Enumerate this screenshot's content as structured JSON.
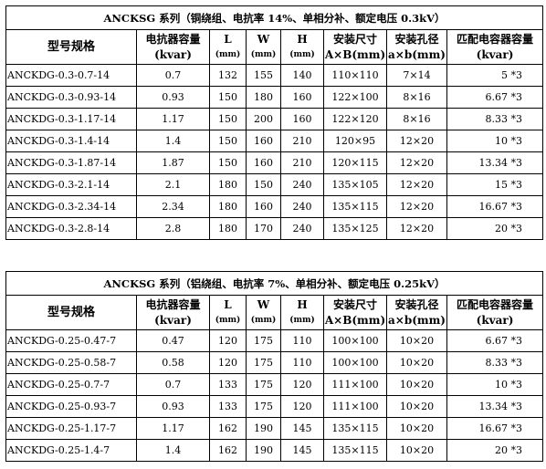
{
  "tables": [
    {
      "title": "ANCKSG 系列（铜绕组、电抗率 14%、单相分补、额定电压 0.3kV）",
      "headers": {
        "model": "型号规格",
        "reactor_cap_l1": "电抗器容量",
        "reactor_cap_l2": "(kvar)",
        "L_l1": "L",
        "L_l2": "(mm)",
        "W_l1": "W",
        "W_l2": "(mm)",
        "H_l1": "H",
        "H_l2": "(mm)",
        "install_l1": "安装尺寸",
        "install_l2": "A×B(mm)",
        "hole_l1": "安装孔径",
        "hole_l2": "a×b(mm)",
        "cap_l1": "匹配电容器容量",
        "cap_l2": "(kvar)"
      },
      "rows": [
        {
          "model": "ANCKDG-0.3-0.7-14",
          "reactor": "0.7",
          "L": "132",
          "W": "155",
          "H": "140",
          "install": "110×110",
          "hole": "7×14",
          "cap": "5 *3"
        },
        {
          "model": "ANCKDG-0.3-0.93-14",
          "reactor": "0.93",
          "L": "150",
          "W": "180",
          "H": "160",
          "install": "122×100",
          "hole": "8×16",
          "cap": "6.67 *3"
        },
        {
          "model": "ANCKDG-0.3-1.17-14",
          "reactor": "1.17",
          "L": "150",
          "W": "200",
          "H": "160",
          "install": "122×120",
          "hole": "8×16",
          "cap": "8.33 *3"
        },
        {
          "model": "ANCKDG-0.3-1.4-14",
          "reactor": "1.4",
          "L": "150",
          "W": "160",
          "H": "210",
          "install": "120×95",
          "hole": "12×20",
          "cap": "10 *3"
        },
        {
          "model": "ANCKDG-0.3-1.87-14",
          "reactor": "1.87",
          "L": "150",
          "W": "160",
          "H": "210",
          "install": "120×115",
          "hole": "12×20",
          "cap": "13.34 *3"
        },
        {
          "model": "ANCKDG-0.3-2.1-14",
          "reactor": "2.1",
          "L": "180",
          "W": "150",
          "H": "240",
          "install": "135×105",
          "hole": "12×20",
          "cap": "15 *3"
        },
        {
          "model": "ANCKDG-0.3-2.34-14",
          "reactor": "2.34",
          "L": "180",
          "W": "160",
          "H": "240",
          "install": "135×115",
          "hole": "12×20",
          "cap": "16.67 *3"
        },
        {
          "model": "ANCKDG-0.3-2.8-14",
          "reactor": "2.8",
          "L": "180",
          "W": "170",
          "H": "240",
          "install": "135×125",
          "hole": "12×20",
          "cap": "20 *3"
        }
      ]
    },
    {
      "title": "ANCKSG 系列（铝绕组、电抗率 7%、单相分补、额定电压 0.25kV）",
      "headers": {
        "model": "型号规格",
        "reactor_cap_l1": "电抗器容量",
        "reactor_cap_l2": "(kvar)",
        "L_l1": "L",
        "L_l2": "(mm)",
        "W_l1": "W",
        "W_l2": "(mm)",
        "H_l1": "H",
        "H_l2": "(mm)",
        "install_l1": "安装尺寸",
        "install_l2": "A×B(mm)",
        "hole_l1": "安装孔径",
        "hole_l2": "a×b(mm)",
        "cap_l1": "匹配电容器容量",
        "cap_l2": "(kvar)"
      },
      "rows": [
        {
          "model": "ANCKDG-0.25-0.47-7",
          "reactor": "0.47",
          "L": "120",
          "W": "175",
          "H": "110",
          "install": "100×100",
          "hole": "10×20",
          "cap": "6.67 *3"
        },
        {
          "model": "ANCKDG-0.25-0.58-7",
          "reactor": "0.58",
          "L": "120",
          "W": "175",
          "H": "110",
          "install": "100×100",
          "hole": "10×20",
          "cap": "8.33 *3"
        },
        {
          "model": "ANCKDG-0.25-0.7-7",
          "reactor": "0.7",
          "L": "133",
          "W": "175",
          "H": "120",
          "install": "111×100",
          "hole": "10×20",
          "cap": "10 *3"
        },
        {
          "model": "ANCKDG-0.25-0.93-7",
          "reactor": "0.93",
          "L": "133",
          "W": "175",
          "H": "120",
          "install": "111×100",
          "hole": "10×20",
          "cap": "13.34 *3"
        },
        {
          "model": "ANCKDG-0.25-1.17-7",
          "reactor": "1.17",
          "L": "162",
          "W": "190",
          "H": "145",
          "install": "135×115",
          "hole": "10×20",
          "cap": "16.67 *3"
        },
        {
          "model": "ANCKDG-0.25-1.4-7",
          "reactor": "1.4",
          "L": "162",
          "W": "190",
          "H": "145",
          "install": "135×115",
          "hole": "10×20",
          "cap": "20 *3"
        }
      ]
    }
  ]
}
